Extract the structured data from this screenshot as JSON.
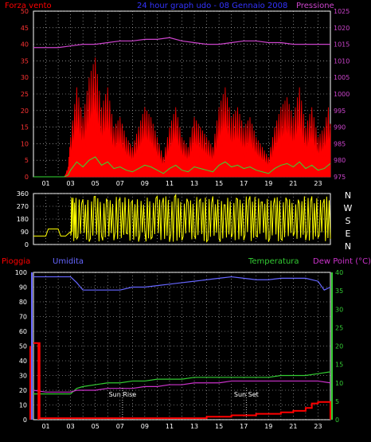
{
  "header": {
    "wind_label": "Forza vento",
    "title": "24 hour graph udo - 08 Gennaio 2008",
    "pressure_label": "Pressione"
  },
  "bottom_labels": {
    "rain": "Pioggia",
    "humidity": "Umidita",
    "temperature": "Temperatura",
    "dewpoint": "Dew Point (°C)"
  },
  "colors": {
    "wind": "#ff0000",
    "gust": "#ffffff",
    "avg_wind": "#33dd33",
    "pressure": "#cc44cc",
    "direction": "#ffff00",
    "humidity": "#6666ff",
    "temperature": "#33cc33",
    "dewpoint": "#cc33cc",
    "rain": "#ff0000",
    "grid": "#cccccc"
  },
  "chart_data": [
    {
      "type": "line",
      "name": "wind_pressure",
      "x_ticks": [
        "01",
        "03",
        "05",
        "07",
        "09",
        "11",
        "13",
        "15",
        "17",
        "19",
        "21",
        "23"
      ],
      "x_range_hours": [
        0,
        24
      ],
      "y_left": {
        "range": [
          0,
          50
        ],
        "ticks": [
          "0",
          "5",
          "10",
          "15",
          "20",
          "25",
          "30",
          "35",
          "40",
          "45",
          "50"
        ]
      },
      "y_right": {
        "range": [
          975,
          1025
        ],
        "ticks": [
          "975",
          "980",
          "985",
          "990",
          "995",
          "1000",
          "1005",
          "1010",
          "1015",
          "1020",
          "1025"
        ]
      },
      "grid": true,
      "series": [
        {
          "name": "Forza vento",
          "axis": "left",
          "hours": [
            0,
            0.5,
            1,
            1.5,
            2,
            2.5,
            2.8,
            3,
            3.5,
            4,
            4.5,
            5,
            5.5,
            6,
            6.5,
            7,
            7.5,
            8,
            8.5,
            9,
            9.5,
            10,
            10.5,
            11,
            11.5,
            12,
            12.5,
            13,
            13.5,
            14,
            14.5,
            15,
            15.5,
            16,
            16.5,
            17,
            17.5,
            18,
            18.5,
            19,
            19.5,
            20,
            20.5,
            21,
            21.5,
            22,
            22.5,
            23,
            23.5,
            24
          ],
          "values": [
            0,
            0,
            0,
            0,
            0,
            0,
            2,
            8,
            18,
            12,
            20,
            24,
            14,
            18,
            10,
            12,
            8,
            6,
            10,
            14,
            12,
            8,
            4,
            10,
            14,
            8,
            6,
            12,
            10,
            8,
            6,
            14,
            18,
            12,
            14,
            10,
            12,
            8,
            6,
            4,
            10,
            14,
            16,
            12,
            18,
            10,
            14,
            8,
            10,
            16
          ]
        },
        {
          "name": "Pressione",
          "axis": "right",
          "hours": [
            0,
            1,
            2,
            3,
            4,
            5,
            6,
            7,
            8,
            9,
            10,
            11,
            12,
            13,
            14,
            15,
            16,
            17,
            18,
            19,
            20,
            21,
            22,
            23,
            24
          ],
          "values": [
            1014,
            1014,
            1014,
            1014.5,
            1015,
            1015,
            1015.5,
            1016,
            1016,
            1016.5,
            1016.5,
            1017,
            1016,
            1015.5,
            1015,
            1015,
            1015.5,
            1016,
            1016,
            1015.5,
            1015.5,
            1015,
            1015,
            1015,
            1015
          ]
        }
      ]
    },
    {
      "type": "line",
      "name": "wind_direction",
      "x_range_hours": [
        0,
        24
      ],
      "y_left": {
        "range": [
          0,
          360
        ],
        "ticks": [
          "0",
          "90",
          "180",
          "270",
          "360"
        ]
      },
      "y_right_labels": [
        "N",
        "W",
        "S",
        "E",
        "N"
      ],
      "series": [
        {
          "name": "direction",
          "hours": [
            0,
            1,
            1.2,
            2,
            2.2,
            2.6,
            3,
            3.2,
            3.5,
            4,
            4.5,
            5,
            5.5,
            6,
            6.5,
            7,
            7.5,
            8,
            8.5,
            9,
            9.5,
            10,
            10.5,
            11,
            11.5,
            12,
            12.5,
            13,
            13.5,
            14,
            14.5,
            15,
            15.5,
            16,
            16.5,
            17,
            17.5,
            18,
            18.5,
            19,
            19.5,
            20,
            20.5,
            21,
            21.5,
            22,
            22.5,
            23,
            23.5,
            24
          ],
          "values": [
            60,
            60,
            110,
            110,
            60,
            60,
            90,
            330,
            40,
            320,
            20,
            340,
            60,
            300,
            30,
            330,
            80,
            310,
            20,
            90,
            40,
            340,
            330,
            20,
            350,
            30,
            300,
            60,
            320,
            20,
            340,
            40,
            280,
            50,
            320,
            30,
            340,
            60,
            300,
            20,
            330,
            40,
            310,
            60,
            290,
            30,
            340,
            50,
            320,
            40
          ]
        }
      ]
    },
    {
      "type": "line",
      "name": "rain_humidity_temp",
      "x_ticks": [
        "01",
        "03",
        "05",
        "07",
        "09",
        "11",
        "13",
        "15",
        "17",
        "19",
        "21",
        "23"
      ],
      "x_range_hours": [
        0,
        24
      ],
      "y_left": {
        "range": [
          0,
          100
        ],
        "ticks": [
          "0",
          "10",
          "20",
          "30",
          "40",
          "50",
          "60",
          "70",
          "80",
          "90",
          "100"
        ]
      },
      "y_right": {
        "range": [
          0,
          40
        ],
        "ticks": [
          "0",
          "5",
          "10",
          "15",
          "20",
          "25",
          "30",
          "35",
          "40"
        ]
      },
      "annotations": [
        {
          "label": "Sun Rise",
          "hour": 7.2
        },
        {
          "label": "Sun Set",
          "hour": 17.2
        }
      ],
      "series": [
        {
          "name": "Umidita",
          "axis": "left",
          "hours": [
            0,
            1,
            2,
            3,
            3.5,
            4,
            5,
            6,
            7,
            8,
            9,
            10,
            11,
            12,
            13,
            14,
            15,
            16,
            17,
            18,
            19,
            20,
            21,
            22,
            23,
            23.5,
            24
          ],
          "values": [
            97,
            97,
            97,
            97,
            93,
            88,
            88,
            88,
            88,
            90,
            90,
            91,
            92,
            93,
            94,
            95,
            96,
            97,
            96,
            95,
            95,
            96,
            96,
            96,
            94,
            88,
            90
          ]
        },
        {
          "name": "Temperatura",
          "axis": "right",
          "hours": [
            0,
            1,
            2,
            3,
            3.5,
            4,
            5,
            6,
            7,
            8,
            9,
            10,
            11,
            12,
            13,
            14,
            15,
            16,
            17,
            18,
            19,
            20,
            21,
            22,
            23,
            24
          ],
          "values": [
            7,
            7,
            7,
            7,
            8.5,
            9,
            9.5,
            10,
            10,
            10.5,
            10.5,
            11,
            11,
            11,
            11.5,
            11.5,
            11.5,
            11.5,
            11.5,
            11.5,
            11.5,
            12,
            12,
            12,
            12.5,
            13
          ]
        },
        {
          "name": "Dew Point",
          "axis": "right",
          "hours": [
            0,
            1,
            2,
            3,
            3.5,
            4,
            5,
            6,
            7,
            8,
            9,
            10,
            11,
            12,
            13,
            14,
            15,
            16,
            17,
            18,
            19,
            20,
            21,
            22,
            23,
            24
          ],
          "values": [
            8,
            7.5,
            7.5,
            7.5,
            8,
            8,
            8,
            8.5,
            8.5,
            8.5,
            9,
            9,
            9.5,
            9.5,
            10,
            10,
            10,
            10.5,
            10.5,
            10.5,
            10.5,
            10.5,
            10.5,
            10.5,
            10.5,
            10
          ]
        },
        {
          "name": "Pioggia",
          "axis": "left",
          "hours": [
            0,
            0.4,
            0.5,
            7,
            12,
            14,
            16,
            18,
            20,
            21,
            22,
            22.5,
            23,
            24
          ],
          "values": [
            52,
            52,
            1,
            1,
            1,
            2,
            3,
            4,
            5,
            6,
            8,
            11,
            12,
            10
          ]
        }
      ]
    }
  ]
}
